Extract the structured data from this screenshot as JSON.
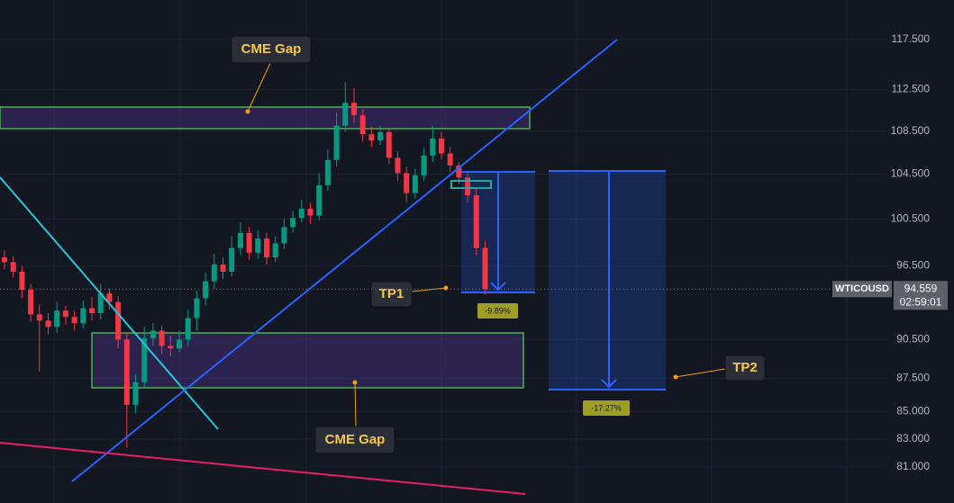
{
  "chart_data": {
    "type": "candlestick",
    "symbol": "WTICOUSD",
    "last_price": 94.559,
    "countdown": "02:59:01",
    "log_scale": true,
    "ylim": [
      78.5,
      121.6
    ],
    "yticks": [
      {
        "value": 117.5,
        "label": "117.500"
      },
      {
        "value": 112.5,
        "label": "112.500"
      },
      {
        "value": 108.5,
        "label": "108.500"
      },
      {
        "value": 104.5,
        "label": "104.500"
      },
      {
        "value": 100.5,
        "label": "100.500"
      },
      {
        "value": 96.5,
        "label": "96.500"
      },
      {
        "value": 90.5,
        "label": "90.500"
      },
      {
        "value": 87.5,
        "label": "87.500"
      },
      {
        "value": 85,
        "label": "85.000"
      },
      {
        "value": 83,
        "label": "83.000"
      },
      {
        "value": 81,
        "label": "81.000"
      }
    ],
    "up_color": "#089981",
    "down_color": "#f23645",
    "open": [
      97.2,
      96.8,
      96.0,
      94.5,
      92.5,
      92.0,
      91.5,
      92.8,
      92.3,
      91.8,
      93.0,
      92.6,
      94.2,
      93.5,
      90.5,
      85.5,
      87.2,
      90.6,
      91.2,
      90.0,
      89.8,
      90.5,
      92.2,
      93.8,
      95.2,
      96.6,
      96.0,
      98.0,
      99.3,
      97.6,
      98.8,
      97.2,
      98.4,
      99.8,
      100.6,
      101.4,
      100.8,
      103.5,
      105.8,
      109.0,
      111.2,
      110.0,
      108.2,
      107.6,
      108.4,
      106.0,
      104.6,
      102.8,
      104.4,
      106.2,
      107.8,
      106.4,
      105.3,
      104.2,
      102.6,
      98.0
    ],
    "high": [
      97.8,
      97.3,
      96.5,
      95.0,
      93.3,
      92.6,
      93.5,
      93.2,
      92.8,
      93.6,
      93.9,
      95.0,
      94.6,
      94.0,
      91.0,
      87.8,
      91.5,
      91.8,
      91.6,
      90.8,
      91.2,
      92.9,
      94.4,
      95.9,
      97.5,
      97.2,
      99.0,
      100.2,
      99.8,
      99.5,
      99.3,
      99.0,
      100.5,
      101.2,
      102.2,
      101.9,
      104.6,
      106.8,
      110.2,
      113.2,
      112.6,
      110.6,
      108.9,
      109.0,
      108.8,
      106.6,
      105.2,
      105.0,
      106.9,
      109.0,
      108.4,
      107.0,
      105.6,
      104.8,
      103.2,
      98.6
    ],
    "low": [
      96.2,
      95.5,
      93.8,
      91.9,
      88.0,
      90.9,
      91.0,
      91.7,
      91.2,
      91.4,
      92.0,
      92.1,
      92.9,
      89.8,
      82.4,
      84.9,
      86.8,
      90.0,
      89.4,
      89.2,
      89.5,
      90.0,
      91.2,
      93.2,
      94.6,
      95.4,
      95.6,
      97.4,
      97.0,
      97.1,
      96.6,
      96.8,
      97.9,
      99.3,
      100.2,
      100.1,
      100.4,
      103.0,
      105.2,
      108.4,
      109.3,
      107.5,
      107.0,
      107.2,
      105.4,
      103.9,
      102.0,
      102.3,
      103.9,
      105.6,
      105.9,
      104.7,
      103.6,
      102.0,
      97.4,
      94.1
    ],
    "close": [
      96.8,
      96.0,
      94.5,
      92.5,
      92.0,
      91.5,
      92.8,
      92.3,
      91.8,
      93.0,
      92.6,
      94.2,
      93.5,
      90.5,
      85.5,
      87.2,
      90.6,
      91.2,
      90.0,
      89.8,
      90.5,
      92.2,
      93.8,
      95.2,
      96.6,
      96.0,
      98.0,
      99.3,
      97.6,
      98.8,
      97.2,
      98.4,
      99.8,
      100.6,
      101.4,
      100.8,
      103.5,
      105.8,
      109.0,
      111.2,
      110.0,
      108.2,
      107.6,
      108.4,
      106.0,
      104.6,
      102.8,
      104.4,
      106.2,
      107.8,
      106.4,
      105.3,
      104.2,
      102.6,
      98.0,
      94.559
    ],
    "annotations": {
      "cme_gap_top": "CME Gap",
      "cme_gap_bottom": "CME Gap",
      "tp1": "TP1",
      "tp2": "TP2",
      "tp1_change": "-9.89%",
      "tp2_change": "-17.27%"
    }
  }
}
